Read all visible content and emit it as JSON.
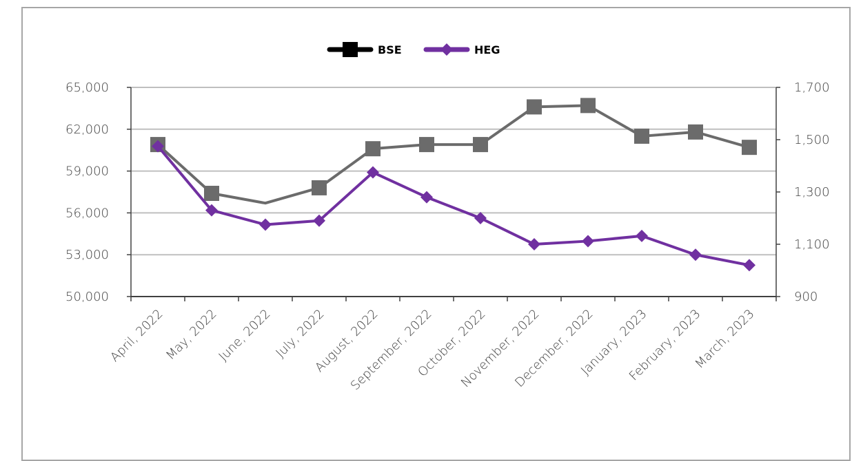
{
  "chart_data": {
    "type": "line",
    "title": "",
    "categories": [
      "April, 2022",
      "May, 2022",
      "June, 2022",
      "July, 2022",
      "August, 2022",
      "September, 2022",
      "October, 2022",
      "November, 2022",
      "December, 2022",
      "January, 2023",
      "February, 2023",
      "March, 2023"
    ],
    "series": [
      {
        "name": "BSE",
        "axis": "left",
        "color": "#6b6b6b",
        "legend_color": "#000000",
        "marker": "square",
        "values": [
          60900,
          57400,
          56700,
          57800,
          60600,
          60900,
          60900,
          63600,
          63700,
          61500,
          61800,
          60700
        ],
        "marker_shown": [
          true,
          true,
          false,
          true,
          true,
          true,
          true,
          true,
          true,
          true,
          true,
          true
        ]
      },
      {
        "name": "HEG",
        "axis": "right",
        "color": "#7030a0",
        "legend_color": "#7030a0",
        "marker": "diamond",
        "values": [
          1475,
          1230,
          1175,
          1190,
          1375,
          1280,
          1200,
          1100,
          1112,
          1132,
          1060,
          1020
        ],
        "marker_shown": [
          true,
          true,
          true,
          true,
          true,
          true,
          true,
          true,
          true,
          true,
          true,
          true
        ]
      }
    ],
    "y_left": {
      "ylim": [
        50000,
        65000
      ],
      "ticks": [
        50000,
        53000,
        56000,
        59000,
        62000,
        65000
      ],
      "tick_labels": [
        "50,000",
        "53,000",
        "56,000",
        "59,000",
        "62,000",
        "65,000"
      ]
    },
    "y_right": {
      "ylim": [
        900,
        1700
      ],
      "ticks": [
        900,
        1100,
        1300,
        1500,
        1700
      ],
      "tick_labels": [
        "900",
        "1,100",
        "1,300",
        "1,500",
        "1,700"
      ]
    },
    "grid": "horizontal",
    "legend_position": "top-center"
  }
}
